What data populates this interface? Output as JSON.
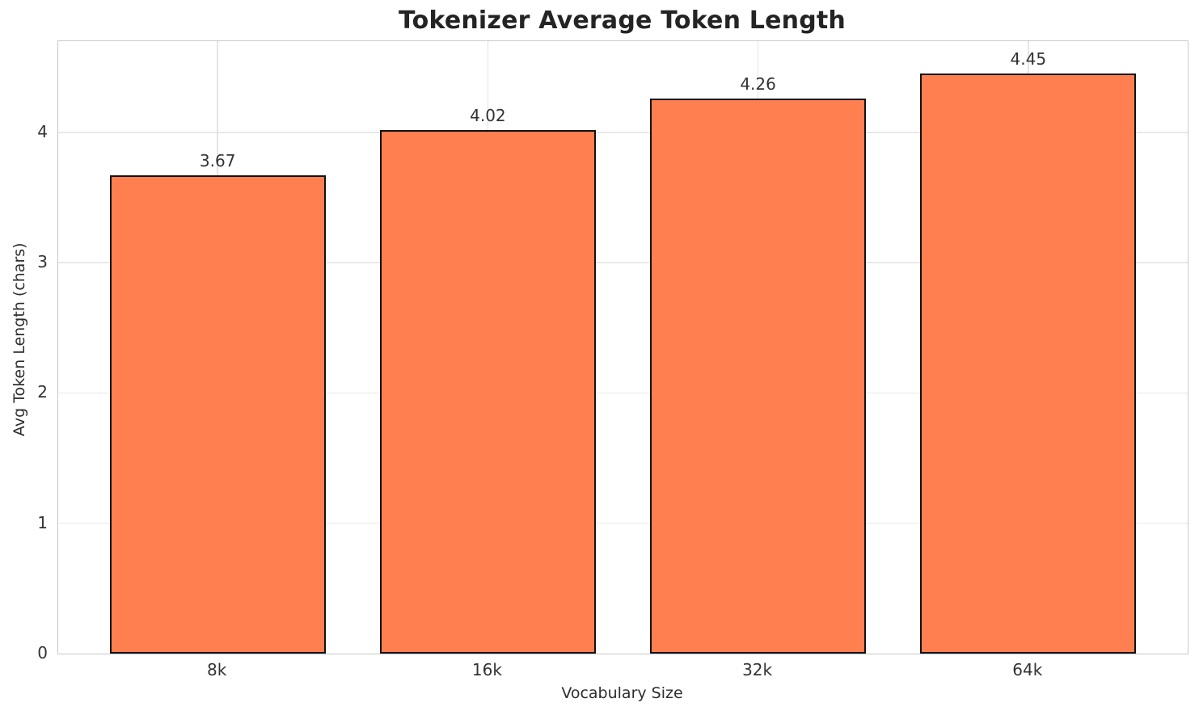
{
  "chart_data": {
    "type": "bar",
    "title": "Tokenizer Average Token Length",
    "xlabel": "Vocabulary Size",
    "ylabel": "Avg Token Length (chars)",
    "categories": [
      "8k",
      "16k",
      "32k",
      "64k"
    ],
    "values": [
      3.67,
      4.02,
      4.26,
      4.45
    ],
    "value_labels": [
      "3.67",
      "4.02",
      "4.26",
      "4.45"
    ],
    "yticks": [
      0,
      1,
      2,
      3,
      4
    ],
    "ylim": [
      0,
      4.7
    ],
    "grid": "both",
    "legend_position": "none",
    "bar_color": "#ff7f50",
    "bar_edge_color": "#111111",
    "grid_color": "#e9e9e9",
    "spine_color": "#c9c9c9",
    "title_color": "#242424",
    "text_color": "#333333",
    "background_color": "#ffffff"
  }
}
